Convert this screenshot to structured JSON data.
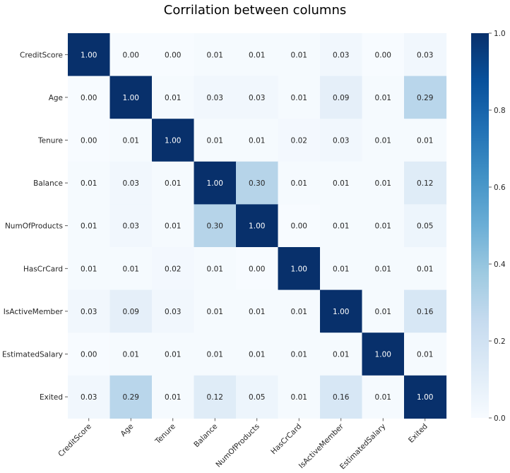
{
  "chart_data": {
    "type": "heatmap",
    "title": "Corrilation between columns",
    "xlabel": "",
    "ylabel": "",
    "labels": [
      "CreditScore",
      "Age",
      "Tenure",
      "Balance",
      "NumOfProducts",
      "HasCrCard",
      "IsActiveMember",
      "EstimatedSalary",
      "Exited"
    ],
    "matrix": [
      [
        1.0,
        0.0,
        0.0,
        0.01,
        0.01,
        0.01,
        0.03,
        0.0,
        0.03
      ],
      [
        0.0,
        1.0,
        0.01,
        0.03,
        0.03,
        0.01,
        0.09,
        0.01,
        0.29
      ],
      [
        0.0,
        0.01,
        1.0,
        0.01,
        0.01,
        0.02,
        0.03,
        0.01,
        0.01
      ],
      [
        0.01,
        0.03,
        0.01,
        1.0,
        0.3,
        0.01,
        0.01,
        0.01,
        0.12
      ],
      [
        0.01,
        0.03,
        0.01,
        0.3,
        1.0,
        0.0,
        0.01,
        0.01,
        0.05
      ],
      [
        0.01,
        0.01,
        0.02,
        0.01,
        0.0,
        1.0,
        0.01,
        0.01,
        0.01
      ],
      [
        0.03,
        0.09,
        0.03,
        0.01,
        0.01,
        0.01,
        1.0,
        0.01,
        0.16
      ],
      [
        0.0,
        0.01,
        0.01,
        0.01,
        0.01,
        0.01,
        0.01,
        1.0,
        0.01
      ],
      [
        0.03,
        0.29,
        0.01,
        0.12,
        0.05,
        0.01,
        0.16,
        0.01,
        1.0
      ]
    ],
    "value_format": "2 decimals",
    "colormap": "Blues",
    "colorbar": {
      "range": [
        0,
        1
      ],
      "ticks": [
        "0.0",
        "0.2",
        "0.4",
        "0.6",
        "0.8",
        "1.0"
      ],
      "tick_values": [
        0,
        0.2,
        0.4,
        0.6,
        0.8,
        1.0
      ]
    },
    "x_tick_rotation_deg": 45,
    "grid": false,
    "legend": "colorbar-right"
  }
}
